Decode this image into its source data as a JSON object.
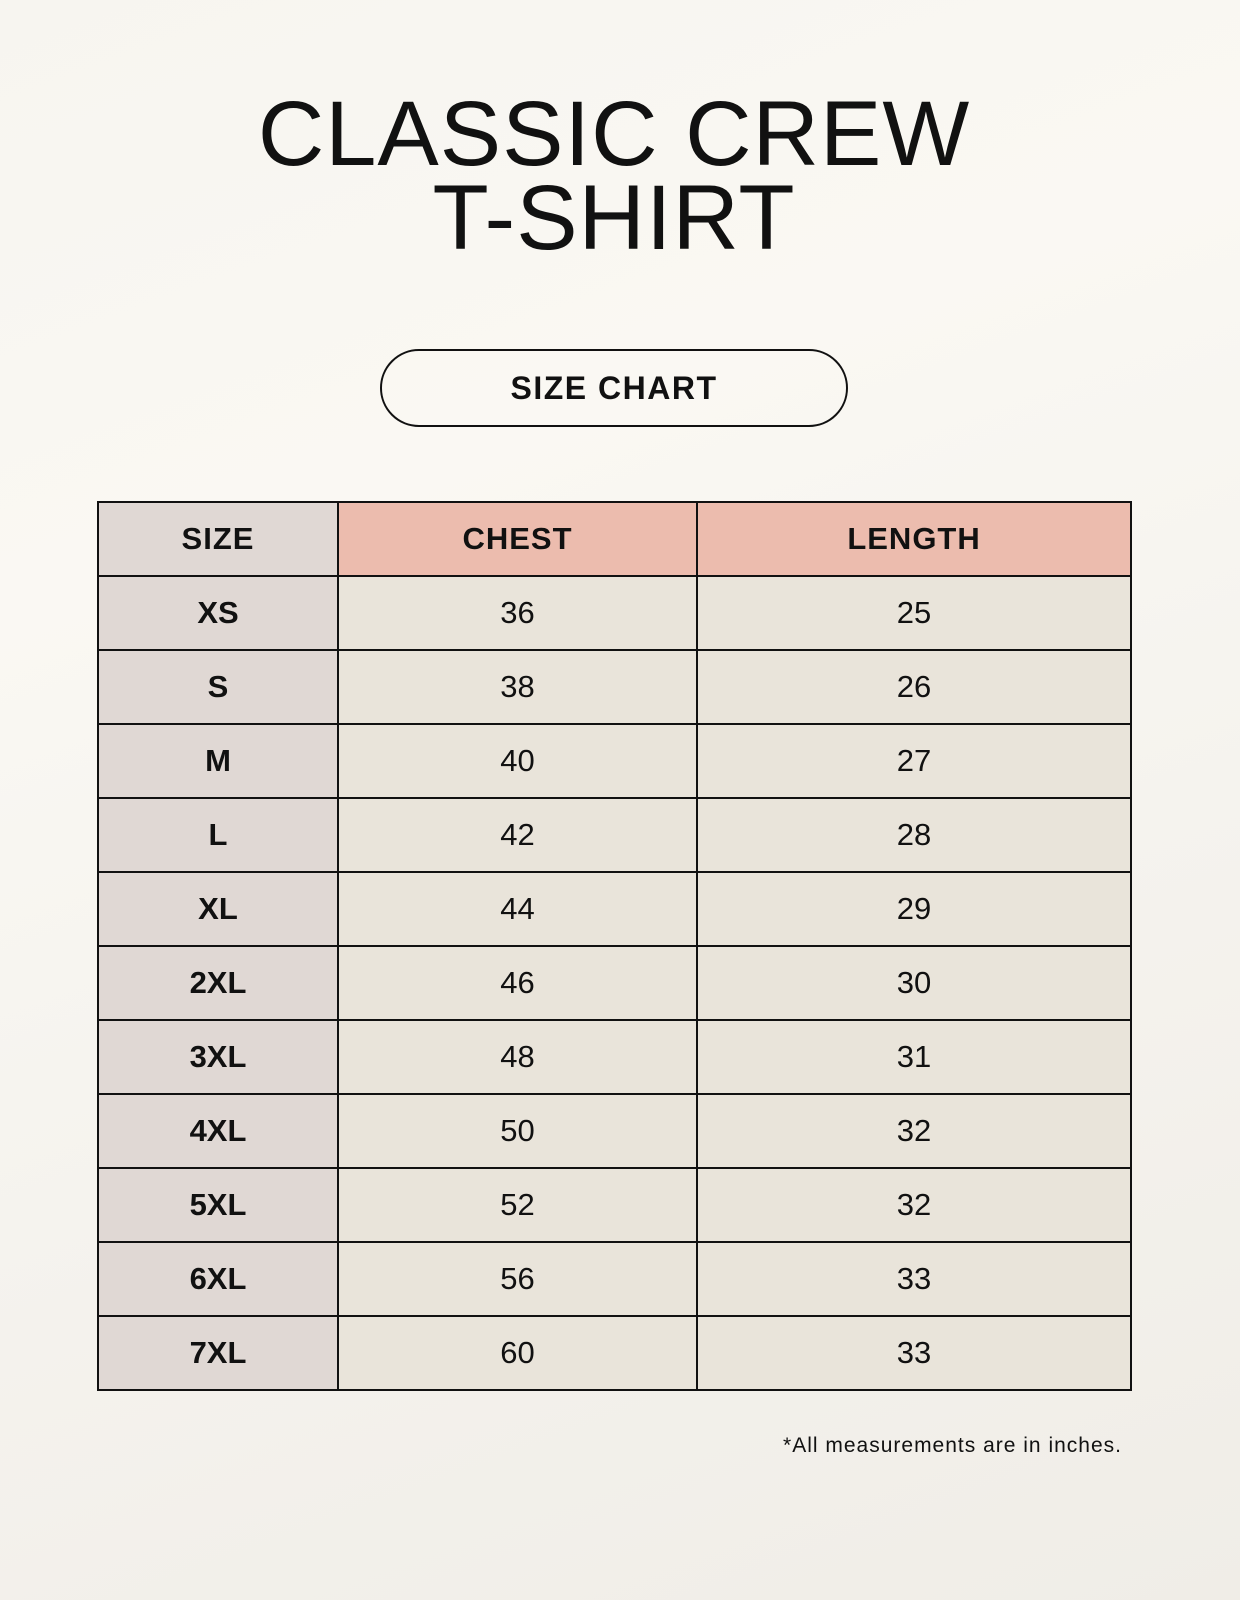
{
  "title_lines": [
    "CLASSIC CREW",
    "T-SHIRT"
  ],
  "badge": "SIZE CHART",
  "table": {
    "headers": [
      "SIZE",
      "CHEST",
      "LENGTH"
    ],
    "rows": [
      [
        "XS",
        "36",
        "25"
      ],
      [
        "S",
        "38",
        "26"
      ],
      [
        "M",
        "40",
        "27"
      ],
      [
        "L",
        "42",
        "28"
      ],
      [
        "XL",
        "44",
        "29"
      ],
      [
        "2XL",
        "46",
        "30"
      ],
      [
        "3XL",
        "48",
        "31"
      ],
      [
        "4XL",
        "50",
        "32"
      ],
      [
        "5XL",
        "52",
        "32"
      ],
      [
        "6XL",
        "56",
        "33"
      ],
      [
        "7XL",
        "60",
        "33"
      ]
    ]
  },
  "footnote": "*All measurements are in inches.",
  "colors": {
    "size_column": "#e0d8d4",
    "header_accent": "#ecbcae",
    "value_cells": "#e9e4da"
  }
}
